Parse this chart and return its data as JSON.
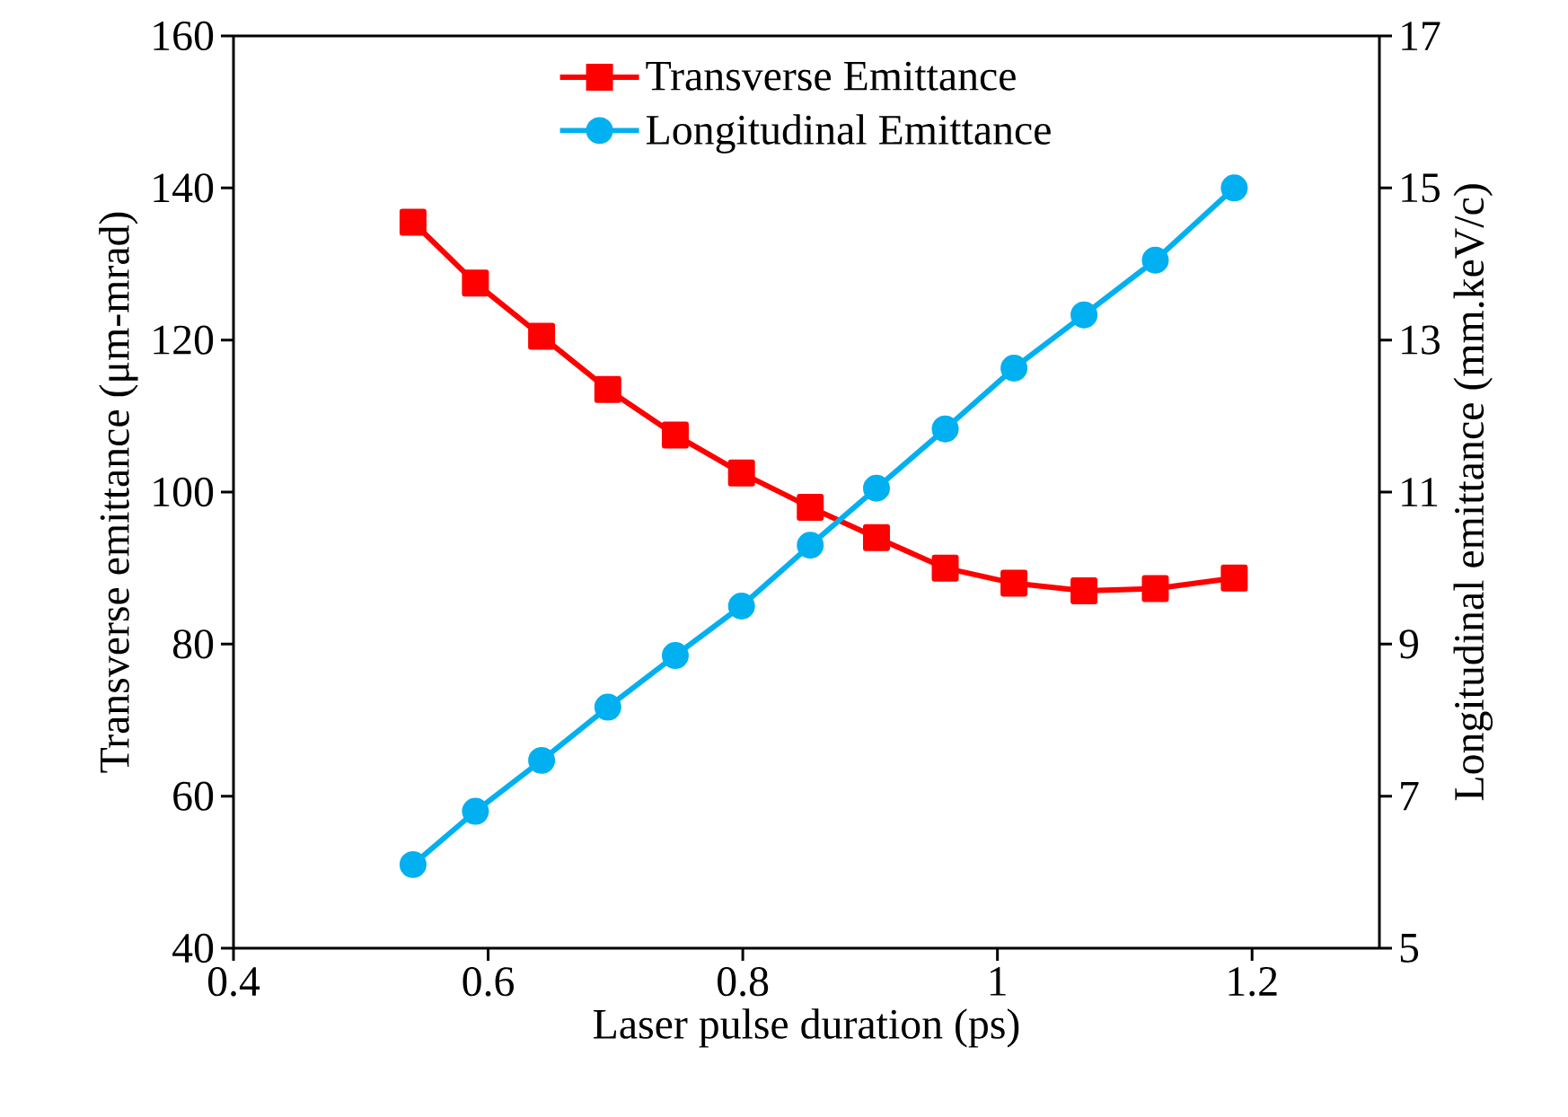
{
  "chart_data": {
    "type": "line",
    "xlabel": "Laser pulse duration (ps)",
    "ylabel": "Transverse emittance (μm-mrad)",
    "y2label": "Longitudinal emittance (mm.keV/c)",
    "x": [
      0.541,
      0.59,
      0.642,
      0.694,
      0.747,
      0.799,
      0.853,
      0.905,
      0.959,
      1.013,
      1.068,
      1.124,
      1.186
    ],
    "series": [
      {
        "name": "Transverse Emittance",
        "color": "#ff0000",
        "marker": "square",
        "values": [
          135.5,
          127.5,
          120.5,
          113.5,
          107.5,
          102.5,
          98,
          94,
          90,
          88,
          87,
          87.3,
          88.7
        ]
      },
      {
        "name": "Longitudinal Emittance",
        "color": "#00b0f0",
        "marker": "circle",
        "axis": "y2",
        "values": [
          6.1,
          6.8,
          7.47,
          8.17,
          8.85,
          9.5,
          10.3,
          11.05,
          11.83,
          12.63,
          13.33,
          14.05,
          15.0
        ]
      }
    ],
    "xlim": [
      0.4,
      1.3
    ],
    "xticks": [
      0.4,
      0.6,
      0.8,
      1,
      1.2
    ],
    "ylim": [
      40,
      160
    ],
    "yticks": [
      40,
      60,
      80,
      100,
      120,
      140,
      160
    ],
    "y2lim": [
      5,
      17
    ],
    "y2ticks": [
      5,
      7,
      9,
      11,
      13,
      15,
      17
    ],
    "grid": false,
    "legend": "top",
    "line_style": "solid"
  }
}
